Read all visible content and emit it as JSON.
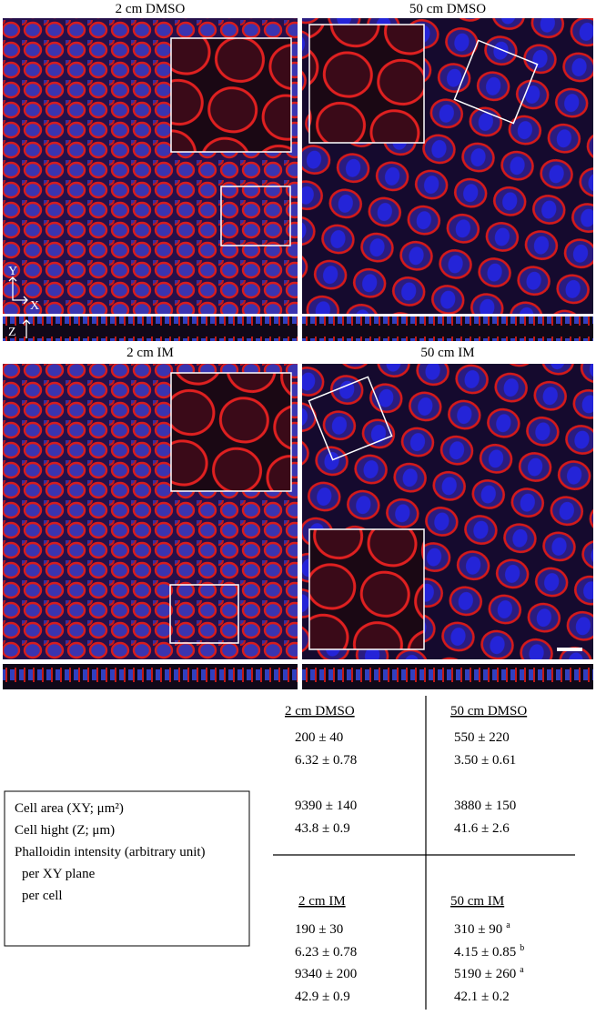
{
  "panels": [
    {
      "title": "2 cm  DMSO"
    },
    {
      "title": "50 cm  DMSO"
    },
    {
      "title": "2 cm  IM"
    },
    {
      "title": "50 cm  IM"
    }
  ],
  "axes": {
    "y": "Y",
    "x": "X",
    "z": "Z"
  },
  "legend": [
    "Cell area (XY; μm²)",
    "Cell hight (Z; μm)",
    "Phalloidin intensity (arbitrary unit)",
    "per XY plane",
    "per cell"
  ],
  "table": {
    "groups": [
      {
        "header": "2 cm  DMSO",
        "rows": [
          {
            "text": "200 ± 40"
          },
          {
            "text": "6.32 ± 0.78"
          },
          {
            "text": "9390 ± 140"
          },
          {
            "text": "43.8 ± 0.9"
          }
        ]
      },
      {
        "header": "50 cm  DMSO",
        "rows": [
          {
            "text": "550 ± 220"
          },
          {
            "text": "3.50 ± 0.61"
          },
          {
            "text": "3880 ± 150"
          },
          {
            "text": "41.6 ± 2.6"
          }
        ]
      },
      {
        "header": "2 cm  IM",
        "rows": [
          {
            "text": "190 ± 30"
          },
          {
            "text": "6.23 ± 0.78"
          },
          {
            "text": "9340 ± 200"
          },
          {
            "text": "42.9 ± 0.9"
          }
        ]
      },
      {
        "header": "50 cm  IM",
        "rows": [
          {
            "text": "310 ± 90",
            "note": "a"
          },
          {
            "text": "4.15 ± 0.85",
            "note": "b"
          },
          {
            "text": "5190 ± 260",
            "note": "a"
          },
          {
            "text": "42.1 ± 0.2"
          }
        ]
      }
    ]
  }
}
